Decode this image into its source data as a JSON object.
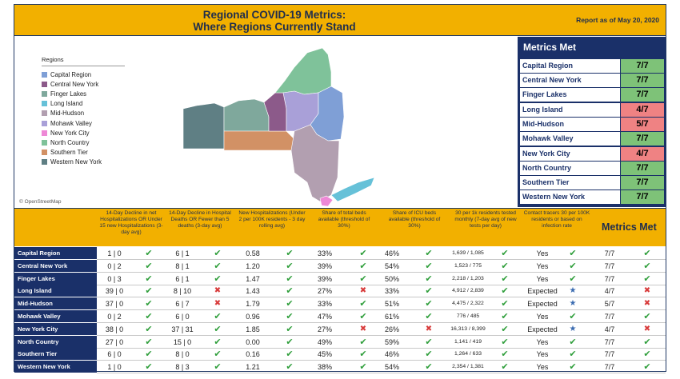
{
  "header": {
    "title_line1": "Regional COVID-19 Metrics:",
    "title_line2": "Where Regions Currently Stand",
    "report_date": "Report as of May 20, 2020"
  },
  "map": {
    "legend_title": "Regions",
    "attribution": "© OpenStreetMap",
    "regions": [
      {
        "name": "Capital Region",
        "color": "#7f9fd6"
      },
      {
        "name": "Central New York",
        "color": "#8c5a8a"
      },
      {
        "name": "Finger Lakes",
        "color": "#7fa89c"
      },
      {
        "name": "Long Island",
        "color": "#66c1d8"
      },
      {
        "name": "Mid-Hudson",
        "color": "#b29fb0"
      },
      {
        "name": "Mohawk Valley",
        "color": "#a9a0d8"
      },
      {
        "name": "New York City",
        "color": "#ee88d6"
      },
      {
        "name": "North Country",
        "color": "#7fc29a"
      },
      {
        "name": "Southern Tier",
        "color": "#d29165"
      },
      {
        "name": "Western New York",
        "color": "#5f7f84"
      }
    ]
  },
  "metrics_panel": {
    "title": "Metrics Met",
    "rows": [
      {
        "name": "Capital Region",
        "value": "7/7",
        "status": "good"
      },
      {
        "name": "Central New York",
        "value": "7/7",
        "status": "good"
      },
      {
        "name": "Finger Lakes",
        "value": "7/7",
        "status": "good"
      },
      {
        "name": "Long Island",
        "value": "4/7",
        "status": "bad"
      },
      {
        "name": "Mid-Hudson",
        "value": "5/7",
        "status": "bad"
      },
      {
        "name": "Mohawk Valley",
        "value": "7/7",
        "status": "good"
      },
      {
        "name": "New York City",
        "value": "4/7",
        "status": "bad"
      },
      {
        "name": "North Country",
        "value": "7/7",
        "status": "good"
      },
      {
        "name": "Southern Tier",
        "value": "7/7",
        "status": "good"
      },
      {
        "name": "Western New York",
        "value": "7/7",
        "status": "good"
      }
    ]
  },
  "table": {
    "headers": [
      "14-Day Decline in net Hospitalizations OR Under 15 new Hospitalizations (3-day avg)",
      "14-Day Decline in Hospital Deaths OR Fewer than 5 deaths (3-day avg)",
      "New Hospitalizations (Under 2 per 100K residents - 3 day rolling avg)",
      "Share of total beds available (threshold of 30%)",
      "Share of ICU beds available (threshold of 30%)",
      "30 per 1k residents tested monthly (7-day avg of new tests per day)",
      "Contact tracers 30 per 100K residents or based on infection rate",
      "Metrics Met"
    ],
    "rows": [
      {
        "name": "Capital Region",
        "c1": "1 | 0",
        "m1": "check",
        "c2": "6 | 1",
        "m2": "check",
        "c3": "0.58",
        "m3": "check",
        "c4": "33%",
        "m4": "check",
        "c5": "46%",
        "m5": "check",
        "c6": "1,639 / 1,085",
        "m6": "check",
        "c7": "Yes",
        "m7": "check",
        "c8": "7/7",
        "m8": "check"
      },
      {
        "name": "Central New York",
        "c1": "0 | 2",
        "m1": "check",
        "c2": "8 | 1",
        "m2": "check",
        "c3": "1.20",
        "m3": "check",
        "c4": "39%",
        "m4": "check",
        "c5": "54%",
        "m5": "check",
        "c6": "1,523 / 775",
        "m6": "check",
        "c7": "Yes",
        "m7": "check",
        "c8": "7/7",
        "m8": "check"
      },
      {
        "name": "Finger Lakes",
        "c1": "0 | 3",
        "m1": "check",
        "c2": "6 | 1",
        "m2": "check",
        "c3": "1.47",
        "m3": "check",
        "c4": "39%",
        "m4": "check",
        "c5": "50%",
        "m5": "check",
        "c6": "2,218 / 1,203",
        "m6": "check",
        "c7": "Yes",
        "m7": "check",
        "c8": "7/7",
        "m8": "check"
      },
      {
        "name": "Long Island",
        "c1": "39 | 0",
        "m1": "check",
        "c2": "8 | 10",
        "m2": "cross",
        "c3": "1.43",
        "m3": "check",
        "c4": "27%",
        "m4": "cross",
        "c5": "33%",
        "m5": "check",
        "c6": "4,912 / 2,839",
        "m6": "check",
        "c7": "Expected",
        "m7": "star",
        "c8": "4/7",
        "m8": "cross"
      },
      {
        "name": "Mid-Hudson",
        "c1": "37 | 0",
        "m1": "check",
        "c2": "6 | 7",
        "m2": "cross",
        "c3": "1.79",
        "m3": "check",
        "c4": "33%",
        "m4": "check",
        "c5": "51%",
        "m5": "check",
        "c6": "4,475 / 2,322",
        "m6": "check",
        "c7": "Expected",
        "m7": "star",
        "c8": "5/7",
        "m8": "cross"
      },
      {
        "name": "Mohawk Valley",
        "c1": "0 | 2",
        "m1": "check",
        "c2": "6 | 0",
        "m2": "check",
        "c3": "0.96",
        "m3": "check",
        "c4": "47%",
        "m4": "check",
        "c5": "61%",
        "m5": "check",
        "c6": "776 / 485",
        "m6": "check",
        "c7": "Yes",
        "m7": "check",
        "c8": "7/7",
        "m8": "check"
      },
      {
        "name": "New York City",
        "c1": "38 | 0",
        "m1": "check",
        "c2": "37 | 31",
        "m2": "check",
        "c3": "1.85",
        "m3": "check",
        "c4": "27%",
        "m4": "cross",
        "c5": "26%",
        "m5": "cross",
        "c6": "16,313 / 8,399",
        "m6": "check",
        "c7": "Expected",
        "m7": "star",
        "c8": "4/7",
        "m8": "cross"
      },
      {
        "name": "North Country",
        "c1": "27 | 0",
        "m1": "check",
        "c2": "15 | 0",
        "m2": "check",
        "c3": "0.00",
        "m3": "check",
        "c4": "49%",
        "m4": "check",
        "c5": "59%",
        "m5": "check",
        "c6": "1,141 / 419",
        "m6": "check",
        "c7": "Yes",
        "m7": "check",
        "c8": "7/7",
        "m8": "check"
      },
      {
        "name": "Southern Tier",
        "c1": "6 | 0",
        "m1": "check",
        "c2": "8 | 0",
        "m2": "check",
        "c3": "0.16",
        "m3": "check",
        "c4": "45%",
        "m4": "check",
        "c5": "46%",
        "m5": "check",
        "c6": "1,264 / 633",
        "m6": "check",
        "c7": "Yes",
        "m7": "check",
        "c8": "7/7",
        "m8": "check"
      },
      {
        "name": "Western New York",
        "c1": "1 | 0",
        "m1": "check",
        "c2": "8 | 3",
        "m2": "check",
        "c3": "1.21",
        "m3": "check",
        "c4": "38%",
        "m4": "check",
        "c5": "54%",
        "m5": "check",
        "c6": "2,354 / 1,381",
        "m6": "check",
        "c7": "Yes",
        "m7": "check",
        "c8": "7/7",
        "m8": "check"
      }
    ]
  }
}
